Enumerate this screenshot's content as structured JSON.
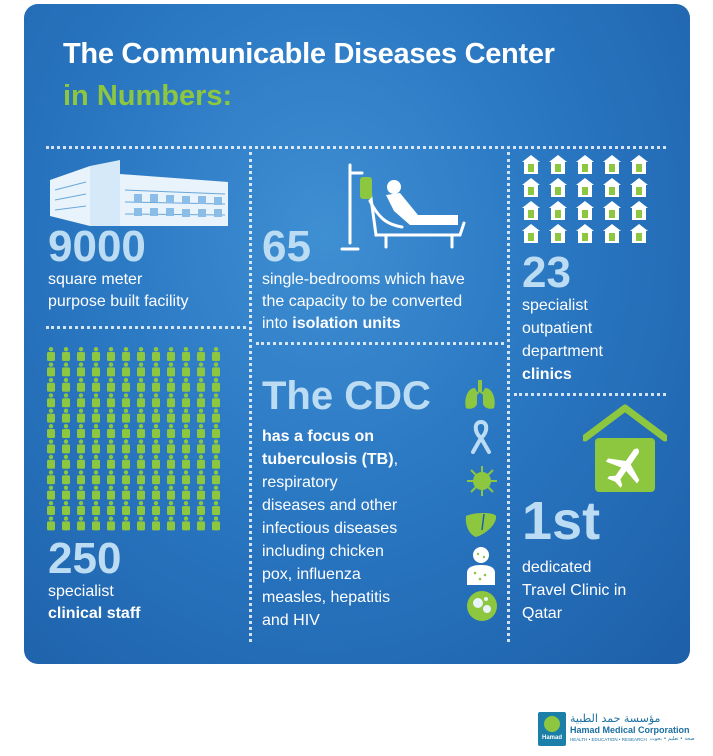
{
  "title": {
    "line1": "The Communicable Diseases Center",
    "line2": "in Numbers:"
  },
  "stats": {
    "facility": {
      "number": "9000",
      "line1": "square meter",
      "line2": "purpose built facility"
    },
    "bedrooms": {
      "number": "65",
      "line1": "single-bedrooms which have",
      "line2": "the capacity to be converted",
      "line3_prefix": "into ",
      "line3_bold": "isolation units"
    },
    "clinics": {
      "number": "23",
      "line1": "specialist",
      "line2": "outpatient",
      "line3": "department",
      "line4": "clinics",
      "icon_count": 20
    },
    "staff": {
      "number": "250",
      "line1": "specialist",
      "line2": "clinical staff",
      "icon_count": 144
    }
  },
  "cdc": {
    "heading": "The CDC",
    "bold1": "has a focus on",
    "bold2": "tuberculosis (TB)",
    "after_bold2": ",",
    "line3": "respiratory",
    "line4": "diseases and other",
    "line5": "infectious diseases",
    "line6": "including chicken",
    "line7": "pox, influenza",
    "line8": "measles, hepatitis",
    "line9": "and HIV",
    "icons": [
      "lungs-icon",
      "awareness-ribbon-icon",
      "virus-icon",
      "liver-icon",
      "patient-rash-icon",
      "cells-icon"
    ]
  },
  "travel": {
    "number": "1st",
    "line1": "dedicated",
    "line2": "Travel Clinic in",
    "line3": "Qatar",
    "icon": "house-airplane-icon"
  },
  "logo": {
    "arabic": "مؤسسة حمد الطبية",
    "english": "Hamad Medical Corporation",
    "tagline": "HEALTH • EDUCATION • RESEARCH",
    "tagline_ar": "صحة • تعليم • بحوث",
    "brand": "Hamad"
  },
  "colors": {
    "panel": "#2a77c2",
    "accent_green": "#8dc63f",
    "number_blue": "#bcdcf4"
  }
}
